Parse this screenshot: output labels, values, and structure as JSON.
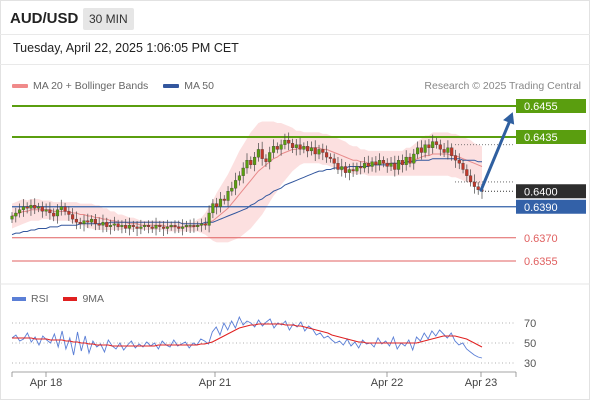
{
  "header": {
    "symbol": "AUD/USD",
    "timeframe": "30 MIN",
    "timestamp": "Tuesday, April 22, 2025 1:06:05 PM CET",
    "credit": "Research © 2025 Trading Central"
  },
  "colors": {
    "resistance": "#5a9e0f",
    "support": "#e06060",
    "pivot": "#3361a8",
    "current": "#333333",
    "candle_up": "#5a9e0f",
    "candle_down": "#c0392b",
    "ma20": "#e88a8a",
    "bands_fill": "#fbd6d6",
    "ma50": "#33579e",
    "rsi": "#5b7fd6",
    "rsi_ma": "#e02020",
    "arrow": "#2f5fa0"
  },
  "chart_data": [
    {
      "type": "line",
      "title": "",
      "legend": [
        {
          "name": "MA 20 + Bollinger Bands",
          "color": "#f08a8a"
        },
        {
          "name": "MA 50",
          "color": "#33579e"
        }
      ],
      "x_ticks": [
        "Apr 18",
        "Apr 21",
        "Apr 22",
        "Apr 23"
      ],
      "levels": [
        {
          "value": 0.6455,
          "label": "0.6455",
          "kind": "resistance"
        },
        {
          "value": 0.6435,
          "label": "0.6435",
          "kind": "resistance"
        },
        {
          "value": 0.64,
          "label": "0.6400",
          "kind": "current"
        },
        {
          "value": 0.639,
          "label": "0.6390",
          "kind": "pivot"
        },
        {
          "value": 0.637,
          "label": "0.6370",
          "kind": "support"
        },
        {
          "value": 0.6355,
          "label": "0.6355",
          "kind": "support"
        }
      ],
      "close": [
        0.6384,
        0.6386,
        0.6388,
        0.639,
        0.6389,
        0.6391,
        0.6389,
        0.639,
        0.6387,
        0.6388,
        0.6386,
        0.6384,
        0.6388,
        0.639,
        0.6387,
        0.6385,
        0.6382,
        0.638,
        0.6379,
        0.6381,
        0.638,
        0.6382,
        0.6379,
        0.6378,
        0.638,
        0.6377,
        0.6378,
        0.6379,
        0.6377,
        0.6378,
        0.6376,
        0.6378,
        0.6377,
        0.6376,
        0.6377,
        0.6378,
        0.6377,
        0.6376,
        0.6378,
        0.6377,
        0.6376,
        0.6377,
        0.6378,
        0.6377,
        0.6376,
        0.6377,
        0.6378,
        0.6378,
        0.6377,
        0.6378,
        0.6379,
        0.6378,
        0.6386,
        0.6392,
        0.639,
        0.6395,
        0.6394,
        0.64,
        0.6402,
        0.6407,
        0.641,
        0.6415,
        0.642,
        0.6417,
        0.6422,
        0.6427,
        0.6421,
        0.6419,
        0.6425,
        0.6429,
        0.6427,
        0.643,
        0.6433,
        0.6431,
        0.6428,
        0.643,
        0.6427,
        0.6429,
        0.6426,
        0.6428,
        0.6424,
        0.6427,
        0.6425,
        0.6422,
        0.6421,
        0.6418,
        0.6414,
        0.6416,
        0.6412,
        0.6414,
        0.6413,
        0.6416,
        0.6415,
        0.6418,
        0.6416,
        0.6419,
        0.6417,
        0.642,
        0.6418,
        0.6416,
        0.6418,
        0.6414,
        0.642,
        0.6417,
        0.6422,
        0.6418,
        0.6424,
        0.6428,
        0.6425,
        0.643,
        0.6428,
        0.6432,
        0.643,
        0.6427,
        0.6425,
        0.6428,
        0.6423,
        0.642,
        0.6418,
        0.6414,
        0.641,
        0.6406,
        0.6403,
        0.6401,
        0.64
      ],
      "ma20": [
        0.6384,
        0.6385,
        0.6386,
        0.6387,
        0.6387,
        0.6388,
        0.6388,
        0.6388,
        0.6388,
        0.6388,
        0.6388,
        0.6387,
        0.6387,
        0.6387,
        0.6387,
        0.6387,
        0.6386,
        0.6386,
        0.6385,
        0.6385,
        0.6384,
        0.6384,
        0.6383,
        0.6383,
        0.6382,
        0.6382,
        0.6381,
        0.6381,
        0.638,
        0.638,
        0.638,
        0.6379,
        0.6379,
        0.6379,
        0.6378,
        0.6378,
        0.6378,
        0.6378,
        0.6378,
        0.6378,
        0.6378,
        0.6377,
        0.6377,
        0.6377,
        0.6377,
        0.6377,
        0.6377,
        0.6377,
        0.6377,
        0.6378,
        0.6378,
        0.6379,
        0.638,
        0.6381,
        0.6383,
        0.6385,
        0.6387,
        0.6389,
        0.6392,
        0.6395,
        0.6398,
        0.6401,
        0.6404,
        0.6407,
        0.641,
        0.6413,
        0.6415,
        0.6417,
        0.6419,
        0.6421,
        0.6422,
        0.6424,
        0.6425,
        0.6426,
        0.6427,
        0.6427,
        0.6428,
        0.6428,
        0.6428,
        0.6428,
        0.6428,
        0.6428,
        0.6427,
        0.6427,
        0.6426,
        0.6425,
        0.6424,
        0.6423,
        0.6422,
        0.6421,
        0.642,
        0.642,
        0.6419,
        0.6419,
        0.6418,
        0.6418,
        0.6418,
        0.6418,
        0.6418,
        0.6418,
        0.6418,
        0.6418,
        0.6418,
        0.6418,
        0.6419,
        0.6419,
        0.642,
        0.6421,
        0.6422,
        0.6423,
        0.6423,
        0.6424,
        0.6424,
        0.6424,
        0.6424,
        0.6424,
        0.6423,
        0.6423,
        0.6422,
        0.6421,
        0.642,
        0.6419,
        0.6418,
        0.6417,
        0.6416
      ],
      "band_width": [
        0.0008,
        0.0008,
        0.0008,
        0.0008,
        0.0007,
        0.0007,
        0.0007,
        0.0007,
        0.0006,
        0.0006,
        0.0006,
        0.0006,
        0.0006,
        0.0006,
        0.0006,
        0.0006,
        0.0007,
        0.0007,
        0.0007,
        0.0007,
        0.0008,
        0.0008,
        0.0008,
        0.0008,
        0.0007,
        0.0007,
        0.0006,
        0.0006,
        0.0005,
        0.0005,
        0.0004,
        0.0004,
        0.0004,
        0.0003,
        0.0003,
        0.0003,
        0.0003,
        0.0003,
        0.0003,
        0.0003,
        0.0003,
        0.0003,
        0.0003,
        0.0003,
        0.0003,
        0.0003,
        0.0003,
        0.0003,
        0.0003,
        0.0004,
        0.0005,
        0.0007,
        0.001,
        0.0013,
        0.0016,
        0.0018,
        0.002,
        0.0022,
        0.0024,
        0.0026,
        0.0028,
        0.0029,
        0.003,
        0.0031,
        0.0031,
        0.0031,
        0.003,
        0.0028,
        0.0026,
        0.0024,
        0.0022,
        0.002,
        0.0018,
        0.0016,
        0.0014,
        0.0012,
        0.0011,
        0.001,
        0.001,
        0.001,
        0.001,
        0.001,
        0.001,
        0.001,
        0.001,
        0.001,
        0.001,
        0.001,
        0.001,
        0.0009,
        0.0009,
        0.0009,
        0.0008,
        0.0008,
        0.0008,
        0.0008,
        0.0008,
        0.0008,
        0.0008,
        0.0008,
        0.0008,
        0.0008,
        0.0008,
        0.0008,
        0.0009,
        0.0009,
        0.001,
        0.0011,
        0.0012,
        0.0013,
        0.0013,
        0.0014,
        0.0014,
        0.0014,
        0.0014,
        0.0014,
        0.0014,
        0.0014,
        0.0014,
        0.0014,
        0.0014,
        0.0014,
        0.0013,
        0.0013,
        0.0013
      ],
      "ma50": [
        0.6372,
        0.6373,
        0.6373,
        0.6374,
        0.6374,
        0.6375,
        0.6375,
        0.6376,
        0.6376,
        0.6376,
        0.6377,
        0.6377,
        0.6377,
        0.6378,
        0.6378,
        0.6378,
        0.6378,
        0.6378,
        0.6379,
        0.6379,
        0.6379,
        0.6379,
        0.6379,
        0.6379,
        0.6379,
        0.6379,
        0.638,
        0.638,
        0.638,
        0.638,
        0.638,
        0.638,
        0.638,
        0.638,
        0.638,
        0.638,
        0.638,
        0.638,
        0.638,
        0.638,
        0.638,
        0.638,
        0.638,
        0.638,
        0.638,
        0.6379,
        0.6379,
        0.6379,
        0.6379,
        0.6379,
        0.6379,
        0.638,
        0.638,
        0.638,
        0.6381,
        0.6382,
        0.6383,
        0.6384,
        0.6385,
        0.6386,
        0.6387,
        0.6388,
        0.6389,
        0.6391,
        0.6392,
        0.6394,
        0.6395,
        0.6397,
        0.6398,
        0.64,
        0.6401,
        0.6402,
        0.6404,
        0.6405,
        0.6406,
        0.6407,
        0.6408,
        0.6409,
        0.641,
        0.6411,
        0.6412,
        0.6413,
        0.6413,
        0.6414,
        0.6414,
        0.6415,
        0.6415,
        0.6415,
        0.6415,
        0.6416,
        0.6416,
        0.6416,
        0.6416,
        0.6416,
        0.6416,
        0.6417,
        0.6417,
        0.6417,
        0.6417,
        0.6417,
        0.6418,
        0.6418,
        0.6418,
        0.6418,
        0.6419,
        0.6419,
        0.6419,
        0.642,
        0.642,
        0.642,
        0.642,
        0.6421,
        0.6421,
        0.6421,
        0.6421,
        0.6421,
        0.6421,
        0.6421,
        0.6421,
        0.642,
        0.642,
        0.642,
        0.642,
        0.6419,
        0.6419
      ],
      "forecast": {
        "from": 0.64,
        "to": 0.6455
      }
    },
    {
      "type": "line",
      "title": "",
      "legend": [
        {
          "name": "RSI",
          "color": "#5b7fd6"
        },
        {
          "name": "9MA",
          "color": "#e02020"
        }
      ],
      "y_ticks": [
        70,
        50,
        30
      ],
      "ylim": [
        25,
        80
      ],
      "rsi": [
        55,
        58,
        52,
        54,
        60,
        51,
        56,
        48,
        57,
        53,
        50,
        59,
        46,
        62,
        44,
        55,
        38,
        61,
        42,
        57,
        40,
        52,
        46,
        49,
        41,
        53,
        47,
        44,
        50,
        43,
        48,
        52,
        45,
        49,
        46,
        51,
        47,
        50,
        44,
        52,
        48,
        46,
        53,
        47,
        49,
        51,
        45,
        50,
        48,
        54,
        52,
        49,
        61,
        66,
        58,
        70,
        63,
        72,
        65,
        76,
        68,
        72,
        70,
        66,
        73,
        67,
        71,
        74,
        65,
        70,
        68,
        72,
        63,
        69,
        66,
        71,
        62,
        67,
        64,
        58,
        60,
        55,
        57,
        53,
        50,
        52,
        48,
        54,
        47,
        51,
        45,
        53,
        49,
        50,
        46,
        55,
        49,
        52,
        47,
        56,
        44,
        50,
        47,
        53,
        43,
        56,
        52,
        60,
        54,
        62,
        57,
        63,
        59,
        55,
        60,
        52,
        48,
        50,
        44,
        41,
        38,
        36,
        35
      ],
      "rsi_ma": [
        55,
        55,
        55,
        55,
        55,
        55,
        54,
        54,
        54,
        54,
        53,
        53,
        53,
        53,
        52,
        52,
        51,
        51,
        50,
        50,
        49,
        49,
        48,
        48,
        48,
        48,
        47,
        47,
        47,
        47,
        47,
        47,
        47,
        47,
        47,
        47,
        47,
        47,
        48,
        48,
        48,
        48,
        48,
        48,
        48,
        48,
        48,
        48,
        48,
        49,
        49,
        50,
        51,
        53,
        55,
        57,
        59,
        61,
        63,
        65,
        66,
        67,
        68,
        68,
        69,
        69,
        69,
        69,
        69,
        69,
        69,
        68,
        68,
        68,
        67,
        67,
        66,
        65,
        64,
        63,
        62,
        61,
        60,
        58,
        57,
        56,
        55,
        54,
        53,
        52,
        51,
        51,
        50,
        50,
        50,
        50,
        50,
        50,
        50,
        50,
        50,
        50,
        50,
        50,
        50,
        50,
        51,
        52,
        53,
        54,
        55,
        56,
        57,
        57,
        57,
        57,
        56,
        55,
        54,
        52,
        50,
        48,
        46
      ]
    }
  ]
}
